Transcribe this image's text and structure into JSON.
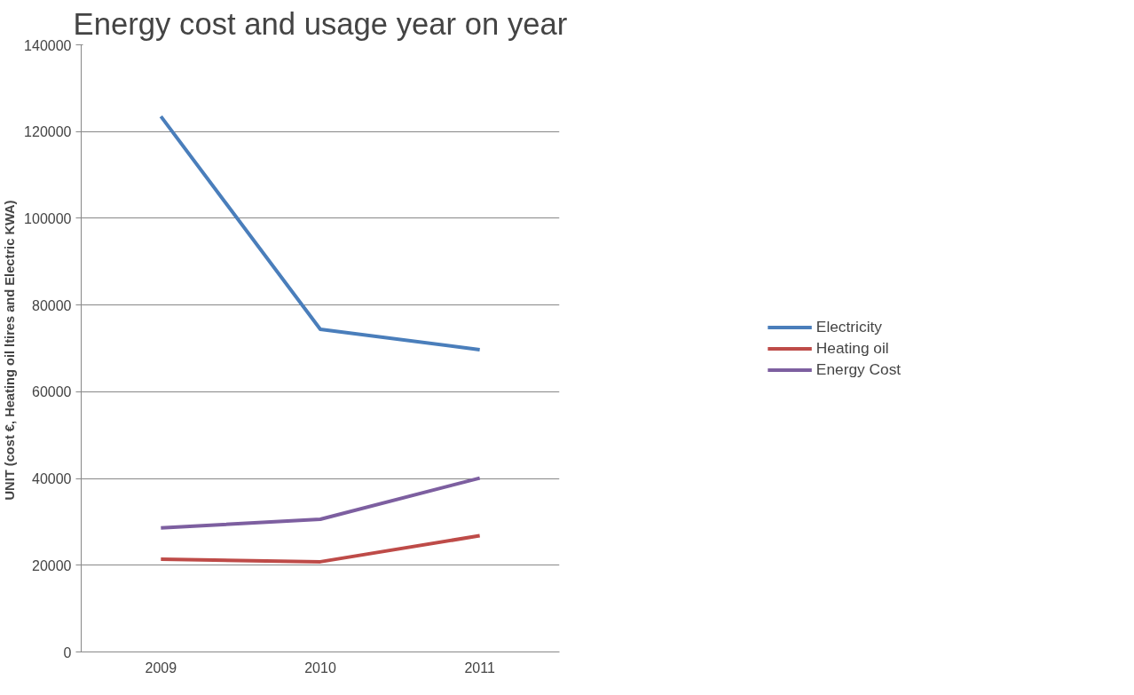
{
  "chart_data": {
    "type": "line",
    "title": "Energy cost and usage year on year",
    "ylabel": "UNIT  (cost €, Heating oil ltires and Electric KWA)",
    "categories": [
      "2009",
      "2010",
      "2011"
    ],
    "series": [
      {
        "name": "Electricity",
        "color": "#4a7ebb",
        "values": [
          123500,
          74400,
          69700
        ]
      },
      {
        "name": "Heating oil",
        "color": "#be4b48",
        "values": [
          21400,
          20800,
          26800
        ]
      },
      {
        "name": "Energy Cost",
        "color": "#7d5fa0",
        "values": [
          28600,
          30600,
          40100
        ]
      }
    ],
    "ylim": [
      0,
      140000
    ],
    "yticks": [
      0,
      20000,
      40000,
      60000,
      80000,
      100000,
      120000,
      140000
    ],
    "grid": "y",
    "legend": "right",
    "marker": "none",
    "line_style": "solid"
  }
}
